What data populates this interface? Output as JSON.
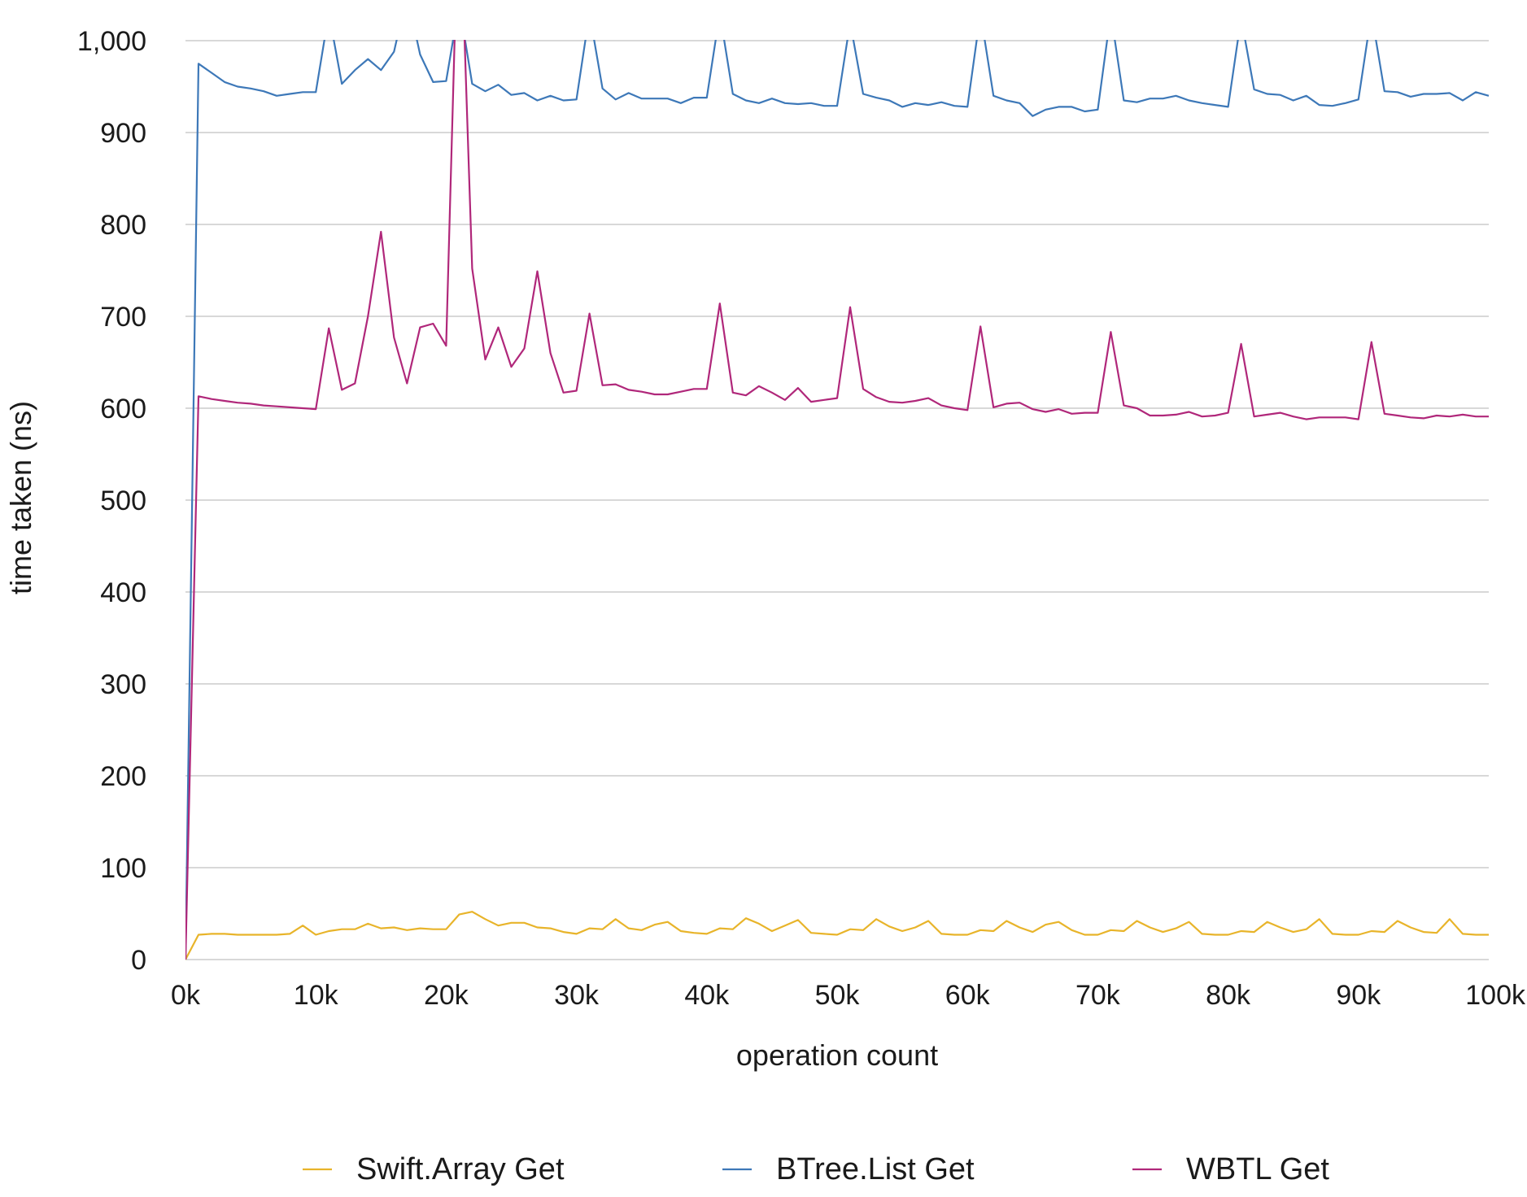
{
  "chart_data": {
    "type": "line",
    "title": "",
    "xlabel": "operation count",
    "ylabel": "time taken (ns)",
    "xlim": [
      0,
      100000
    ],
    "ylim": [
      0,
      1000
    ],
    "grid": true,
    "legend_position": "bottom",
    "x_ticks": [
      0,
      10000,
      20000,
      30000,
      40000,
      50000,
      60000,
      70000,
      80000,
      90000,
      100000
    ],
    "x_tick_labels": [
      "0k",
      "10k",
      "20k",
      "30k",
      "40k",
      "50k",
      "60k",
      "70k",
      "80k",
      "90k",
      "100k"
    ],
    "y_ticks": [
      0,
      100,
      200,
      300,
      400,
      500,
      600,
      700,
      800,
      900,
      1000
    ],
    "y_tick_labels": [
      "0",
      "100",
      "200",
      "300",
      "400",
      "500",
      "600",
      "700",
      "800",
      "900",
      "1,000"
    ],
    "x": [
      0,
      1000,
      2000,
      3000,
      4000,
      5000,
      6000,
      7000,
      8000,
      9000,
      10000,
      11000,
      12000,
      13000,
      14000,
      15000,
      16000,
      17000,
      18000,
      19000,
      20000,
      21000,
      22000,
      23000,
      24000,
      25000,
      26000,
      27000,
      28000,
      29000,
      30000,
      31000,
      32000,
      33000,
      34000,
      35000,
      36000,
      37000,
      38000,
      39000,
      40000,
      41000,
      42000,
      43000,
      44000,
      45000,
      46000,
      47000,
      48000,
      49000,
      50000,
      51000,
      52000,
      53000,
      54000,
      55000,
      56000,
      57000,
      58000,
      59000,
      60000,
      61000,
      62000,
      63000,
      64000,
      65000,
      66000,
      67000,
      68000,
      69000,
      70000,
      71000,
      72000,
      73000,
      74000,
      75000,
      76000,
      77000,
      78000,
      79000,
      80000,
      81000,
      82000,
      83000,
      84000,
      85000,
      86000,
      87000,
      88000,
      89000,
      90000,
      91000,
      92000,
      93000,
      94000,
      95000,
      96000,
      97000,
      98000,
      99000,
      100000
    ],
    "series": [
      {
        "name": "Swift.Array Get",
        "color": "#e8b42a",
        "values": [
          0,
          27,
          28,
          28,
          27,
          27,
          27,
          27,
          28,
          37,
          27,
          31,
          33,
          33,
          39,
          34,
          35,
          32,
          34,
          33,
          33,
          49,
          52,
          44,
          37,
          40,
          40,
          35,
          34,
          30,
          28,
          34,
          33,
          44,
          34,
          32,
          38,
          41,
          31,
          29,
          28,
          34,
          33,
          45,
          39,
          31,
          37,
          43,
          29,
          28,
          27,
          33,
          32,
          44,
          36,
          31,
          35,
          42,
          28,
          27,
          27,
          32,
          31,
          42,
          35,
          30,
          38,
          41,
          32,
          27,
          27,
          32,
          31,
          42,
          35,
          30,
          34,
          41,
          28,
          27,
          27,
          31,
          30,
          41,
          35,
          30,
          33,
          44,
          28,
          27,
          27,
          31,
          30,
          42,
          35,
          30,
          29,
          44,
          28,
          27,
          27
        ]
      },
      {
        "name": "BTree.List Get",
        "color": "#3d78b8",
        "values": [
          0,
          975,
          965,
          955,
          950,
          948,
          945,
          940,
          942,
          944,
          944,
          1030,
          953,
          968,
          980,
          968,
          988,
          1050,
          985,
          955,
          956,
          1040,
          953,
          945,
          952,
          941,
          943,
          935,
          940,
          935,
          936,
          1030,
          948,
          936,
          943,
          937,
          937,
          937,
          932,
          938,
          938,
          1030,
          942,
          935,
          932,
          937,
          932,
          931,
          932,
          929,
          929,
          1020,
          942,
          938,
          935,
          928,
          932,
          930,
          933,
          929,
          928,
          1030,
          940,
          935,
          932,
          918,
          925,
          928,
          928,
          923,
          925,
          1030,
          935,
          933,
          937,
          937,
          940,
          935,
          932,
          930,
          928,
          1025,
          947,
          942,
          941,
          935,
          940,
          930,
          929,
          932,
          936,
          1030,
          945,
          944,
          939,
          942,
          942,
          943,
          935,
          944,
          940
        ]
      },
      {
        "name": "WBTL Get",
        "color": "#b0277a",
        "values": [
          0,
          613,
          610,
          608,
          606,
          605,
          603,
          602,
          601,
          600,
          599,
          687,
          620,
          627,
          700,
          792,
          677,
          627,
          688,
          692,
          668,
          1180,
          752,
          653,
          688,
          645,
          665,
          749,
          660,
          617,
          619,
          703,
          625,
          626,
          620,
          618,
          615,
          615,
          618,
          621,
          621,
          714,
          617,
          614,
          624,
          617,
          609,
          622,
          607,
          609,
          611,
          710,
          621,
          612,
          607,
          606,
          608,
          611,
          603,
          600,
          598,
          689,
          601,
          605,
          606,
          599,
          596,
          599,
          594,
          595,
          595,
          683,
          603,
          600,
          592,
          592,
          593,
          596,
          591,
          592,
          595,
          670,
          591,
          593,
          595,
          591,
          588,
          590,
          590,
          590,
          588,
          672,
          594,
          592,
          590,
          589,
          592,
          591,
          593,
          591,
          591
        ]
      }
    ]
  }
}
